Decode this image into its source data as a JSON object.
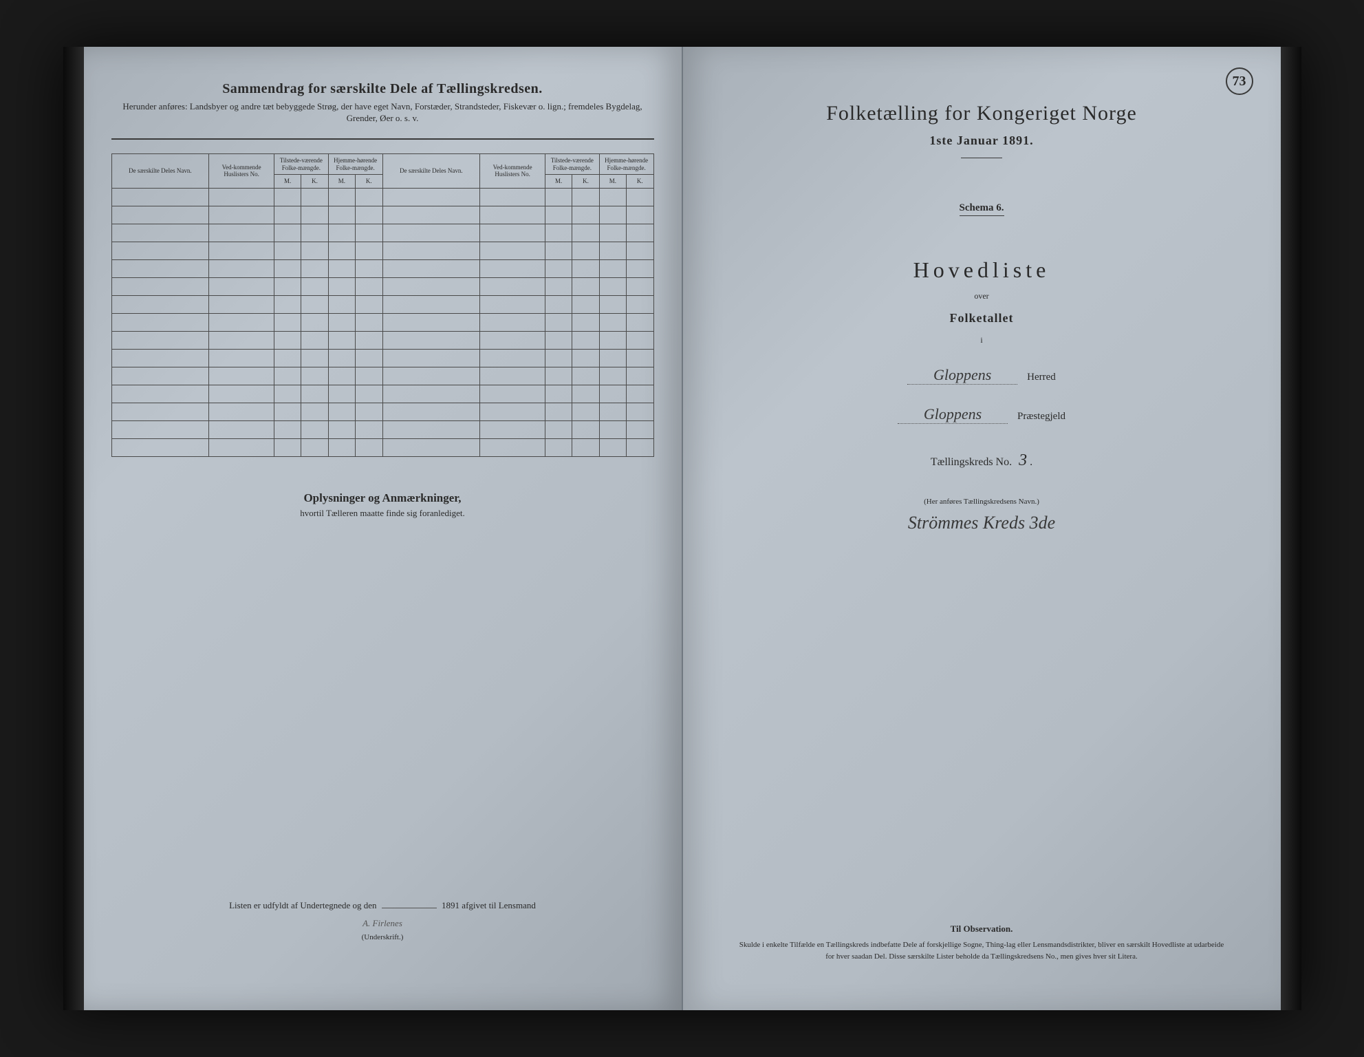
{
  "background_color": "#1a1a1a",
  "page_paper_color": "#b4bcc4",
  "ink_color": "#2a2a2a",
  "left_page": {
    "title": "Sammendrag for særskilte Dele af Tællingskredsen.",
    "subtitle": "Herunder anføres: Landsbyer og andre tæt bebyggede Strøg, der have eget Navn, Forstæder, Strandsteder, Fiskevær o. lign.; fremdeles Bygdelag, Grender, Øer o. s. v.",
    "table_headers": {
      "col_navn": "De særskilte Deles Navn.",
      "col_huslisters": "Ved-kommende Huslisters No.",
      "col_tilstede": "Tilstede-værende Folke-mængde.",
      "col_hjemme": "Hjemme-hørende Folke-mængde.",
      "sub_m": "M.",
      "sub_k": "K."
    },
    "row_count": 15,
    "notes_title": "Oplysninger og Anmærkninger,",
    "notes_sub": "hvortil Tælleren maatte finde sig foranlediget.",
    "signature_prefix": "Listen er udfyldt af Undertegnede og den",
    "signature_year": "1891 afgivet til Lensmand",
    "signature_handwritten": "A. Firlenes",
    "signature_label": "(Underskrift.)"
  },
  "right_page": {
    "page_number": "73",
    "census_title": "Folketælling for Kongeriget Norge",
    "census_date": "1ste Januar 1891.",
    "schema": "Schema 6.",
    "hovedliste": "Hovedliste",
    "over": "over",
    "folketallet": "Folketallet",
    "small_i": "i",
    "herred_hand": "Gloppens",
    "herred_label": "Herred",
    "prestegjeld_hand": "Gloppens",
    "prestegjeld_label": "Præstegjeld",
    "kreds_label": "Tællingskreds No.",
    "kreds_no": "3",
    "anfores": "(Her anføres Tællingskredsens Navn.)",
    "kreds_name": "Strömmes Kreds 3de",
    "observation_title": "Til Observation.",
    "observation_body": "Skulde i enkelte Tilfælde en Tællingskreds indbefatte Dele af forskjellige Sogne, Thing-lag eller Lensmandsdistrikter, bliver en særskilt Hovedliste at udarbeide for hver saadan Del. Disse særskilte Lister beholde da Tællingskredsens No., men gives hver sit Litera."
  }
}
